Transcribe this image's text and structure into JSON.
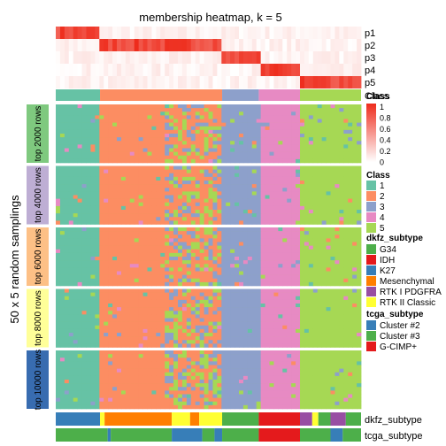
{
  "chart_data": {
    "type": "heatmap",
    "title": "membership heatmap, k = 5",
    "ylabel": "50 x 5 random samplings",
    "membership_rows": [
      "p1",
      "p2",
      "p3",
      "p4",
      "p5"
    ],
    "class_row_label": "Class",
    "row_groups": [
      {
        "label": "top 2000 rows",
        "color": "#7fc97f"
      },
      {
        "label": "top 4000 rows",
        "color": "#beaed4"
      },
      {
        "label": "top 6000 rows",
        "color": "#fdc086"
      },
      {
        "label": "top 8000 rows",
        "color": "#ffff99"
      },
      {
        "label": "top 10000 rows",
        "color": "#386cb0"
      }
    ],
    "class_segments": [
      {
        "class": 1,
        "from": 0.0,
        "to": 0.145
      },
      {
        "class": 2,
        "from": 0.145,
        "to": 0.545
      },
      {
        "class": 3,
        "from": 0.545,
        "to": 0.665
      },
      {
        "class": 4,
        "from": 0.665,
        "to": 0.8
      },
      {
        "class": 5,
        "from": 0.8,
        "to": 1.0
      }
    ],
    "bottom_annotations": [
      {
        "label": "dkfz_subtype",
        "segments": [
          {
            "value": "K27",
            "from": 0.0,
            "to": 0.145
          },
          {
            "value": "RTK II Classic",
            "from": 0.145,
            "to": 0.16
          },
          {
            "value": "Mesenchymal",
            "from": 0.16,
            "to": 0.38
          },
          {
            "value": "RTK II Classic",
            "from": 0.38,
            "to": 0.44
          },
          {
            "value": "Mesenchymal",
            "from": 0.44,
            "to": 0.47
          },
          {
            "value": "RTK II Classic",
            "from": 0.47,
            "to": 0.545
          },
          {
            "value": "G34",
            "from": 0.545,
            "to": 0.665
          },
          {
            "value": "IDH",
            "from": 0.665,
            "to": 0.8
          },
          {
            "value": "RTK I PDGFRA",
            "from": 0.8,
            "to": 0.84
          },
          {
            "value": "RTK II Classic",
            "from": 0.84,
            "to": 0.86
          },
          {
            "value": "G34",
            "from": 0.86,
            "to": 0.9
          },
          {
            "value": "RTK I PDGFRA",
            "from": 0.9,
            "to": 0.95
          },
          {
            "value": "G34",
            "from": 0.95,
            "to": 1.0
          }
        ]
      },
      {
        "label": "tcga_subtype",
        "segments": [
          {
            "value": "Cluster #3",
            "from": 0.0,
            "to": 0.17
          },
          {
            "value": "Cluster #2",
            "from": 0.17,
            "to": 0.18
          },
          {
            "value": "Cluster #3",
            "from": 0.18,
            "to": 0.38
          },
          {
            "value": "Cluster #2",
            "from": 0.38,
            "to": 0.48
          },
          {
            "value": "Cluster #3",
            "from": 0.48,
            "to": 0.52
          },
          {
            "value": "Cluster #2",
            "from": 0.52,
            "to": 0.545
          },
          {
            "value": "Cluster #3",
            "from": 0.545,
            "to": 0.665
          },
          {
            "value": "G-CIMP+",
            "from": 0.665,
            "to": 0.8
          },
          {
            "value": "Cluster #3",
            "from": 0.8,
            "to": 0.9
          },
          {
            "value": "Cluster #2",
            "from": 0.9,
            "to": 0.94
          },
          {
            "value": "Cluster #3",
            "from": 0.94,
            "to": 1.0
          }
        ]
      }
    ],
    "legends": {
      "membership": {
        "title": "Class",
        "ticks": [
          "1",
          "0.8",
          "0.6",
          "0.4",
          "0.2",
          "0"
        ],
        "low_color": "#ffffff",
        "high_color": "#ee2c1c"
      },
      "class": {
        "title": "Class",
        "items": [
          {
            "label": "1",
            "color": "#66c2a5"
          },
          {
            "label": "2",
            "color": "#fc8d62"
          },
          {
            "label": "3",
            "color": "#8da0cb"
          },
          {
            "label": "4",
            "color": "#e78ac3"
          },
          {
            "label": "5",
            "color": "#a6d854"
          }
        ]
      },
      "dkfz_subtype": {
        "title": "dkfz_subtype",
        "items": [
          {
            "label": "G34",
            "color": "#4daf4a"
          },
          {
            "label": "IDH",
            "color": "#e41a1c"
          },
          {
            "label": "K27",
            "color": "#377eb8"
          },
          {
            "label": "Mesenchymal",
            "color": "#ff7f00"
          },
          {
            "label": "RTK I PDGFRA",
            "color": "#984ea3"
          },
          {
            "label": "RTK II Classic",
            "color": "#ffff33"
          }
        ]
      },
      "tcga_subtype": {
        "title": "tcga_subtype",
        "items": [
          {
            "label": "Cluster #2",
            "color": "#377eb8"
          },
          {
            "label": "Cluster #3",
            "color": "#4daf4a"
          },
          {
            "label": "G-CIMP+",
            "color": "#e41a1c"
          }
        ]
      }
    }
  }
}
